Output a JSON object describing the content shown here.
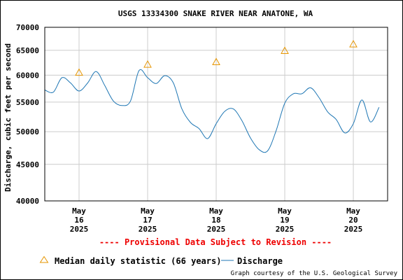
{
  "chart_data": {
    "type": "line",
    "title": "USGS 13334300 SNAKE RIVER NEAR ANATONE, WA",
    "ylabel": "Discharge, cubic feet per second",
    "xlabel": "",
    "y_scale": "log",
    "ylim": [
      40000,
      70000
    ],
    "y_ticks": [
      40000,
      45000,
      50000,
      55000,
      60000,
      65000,
      70000
    ],
    "y_tick_labels": [
      "40000",
      "45000",
      "50000",
      "55000",
      "60000",
      "65000",
      "70000"
    ],
    "xlim": [
      "2025-05-15 12:00",
      "2025-05-20 12:00"
    ],
    "x_ticks": [
      {
        "line1": "May",
        "line2": "16",
        "line3": "2025"
      },
      {
        "line1": "May",
        "line2": "17",
        "line3": "2025"
      },
      {
        "line1": "May",
        "line2": "18",
        "line3": "2025"
      },
      {
        "line1": "May",
        "line2": "19",
        "line3": "2025"
      },
      {
        "line1": "May",
        "line2": "20",
        "line3": "2025"
      }
    ],
    "grid": true,
    "legend_placement": "bottom",
    "series": [
      {
        "name": "Median daily statistic (66 years)",
        "marker": "triangle",
        "color": "#e69500",
        "x": [
          "2025-05-16",
          "2025-05-17",
          "2025-05-18",
          "2025-05-19",
          "2025-05-20"
        ],
        "y": [
          60500,
          62100,
          62600,
          64900,
          66300
        ]
      },
      {
        "name": "Discharge",
        "color": "#1f77b4",
        "x": [
          "2025-05-15 12:00",
          "2025-05-15 15:00",
          "2025-05-15 18:00",
          "2025-05-15 21:00",
          "2025-05-16 00:00",
          "2025-05-16 03:00",
          "2025-05-16 06:00",
          "2025-05-16 09:00",
          "2025-05-16 12:00",
          "2025-05-16 15:00",
          "2025-05-16 18:00",
          "2025-05-16 21:00",
          "2025-05-17 00:00",
          "2025-05-17 03:00",
          "2025-05-17 06:00",
          "2025-05-17 09:00",
          "2025-05-17 12:00",
          "2025-05-17 15:00",
          "2025-05-17 18:00",
          "2025-05-17 21:00",
          "2025-05-18 00:00",
          "2025-05-18 03:00",
          "2025-05-18 06:00",
          "2025-05-18 09:00",
          "2025-05-18 12:00",
          "2025-05-18 15:00",
          "2025-05-18 18:00",
          "2025-05-18 21:00",
          "2025-05-19 00:00",
          "2025-05-19 03:00",
          "2025-05-19 06:00",
          "2025-05-19 09:00",
          "2025-05-19 12:00",
          "2025-05-19 15:00",
          "2025-05-19 18:00",
          "2025-05-19 21:00",
          "2025-05-20 00:00",
          "2025-05-20 03:00",
          "2025-05-20 06:00",
          "2025-05-20 09:00"
        ],
        "y": [
          57200,
          56800,
          59500,
          58500,
          57000,
          58500,
          60700,
          58000,
          55200,
          54400,
          55200,
          60900,
          59500,
          58400,
          59900,
          58500,
          53800,
          51500,
          50500,
          48900,
          51300,
          53400,
          53800,
          51800,
          49000,
          47200,
          47000,
          50200,
          54800,
          56500,
          56500,
          57600,
          55800,
          53300,
          52000,
          49800,
          51300,
          55400,
          51600,
          54100
        ]
      }
    ]
  },
  "footer": {
    "provisional": "---- Provisional Data Subject to Revision ----",
    "credit": "Graph courtesy of the U.S. Geological Survey"
  }
}
